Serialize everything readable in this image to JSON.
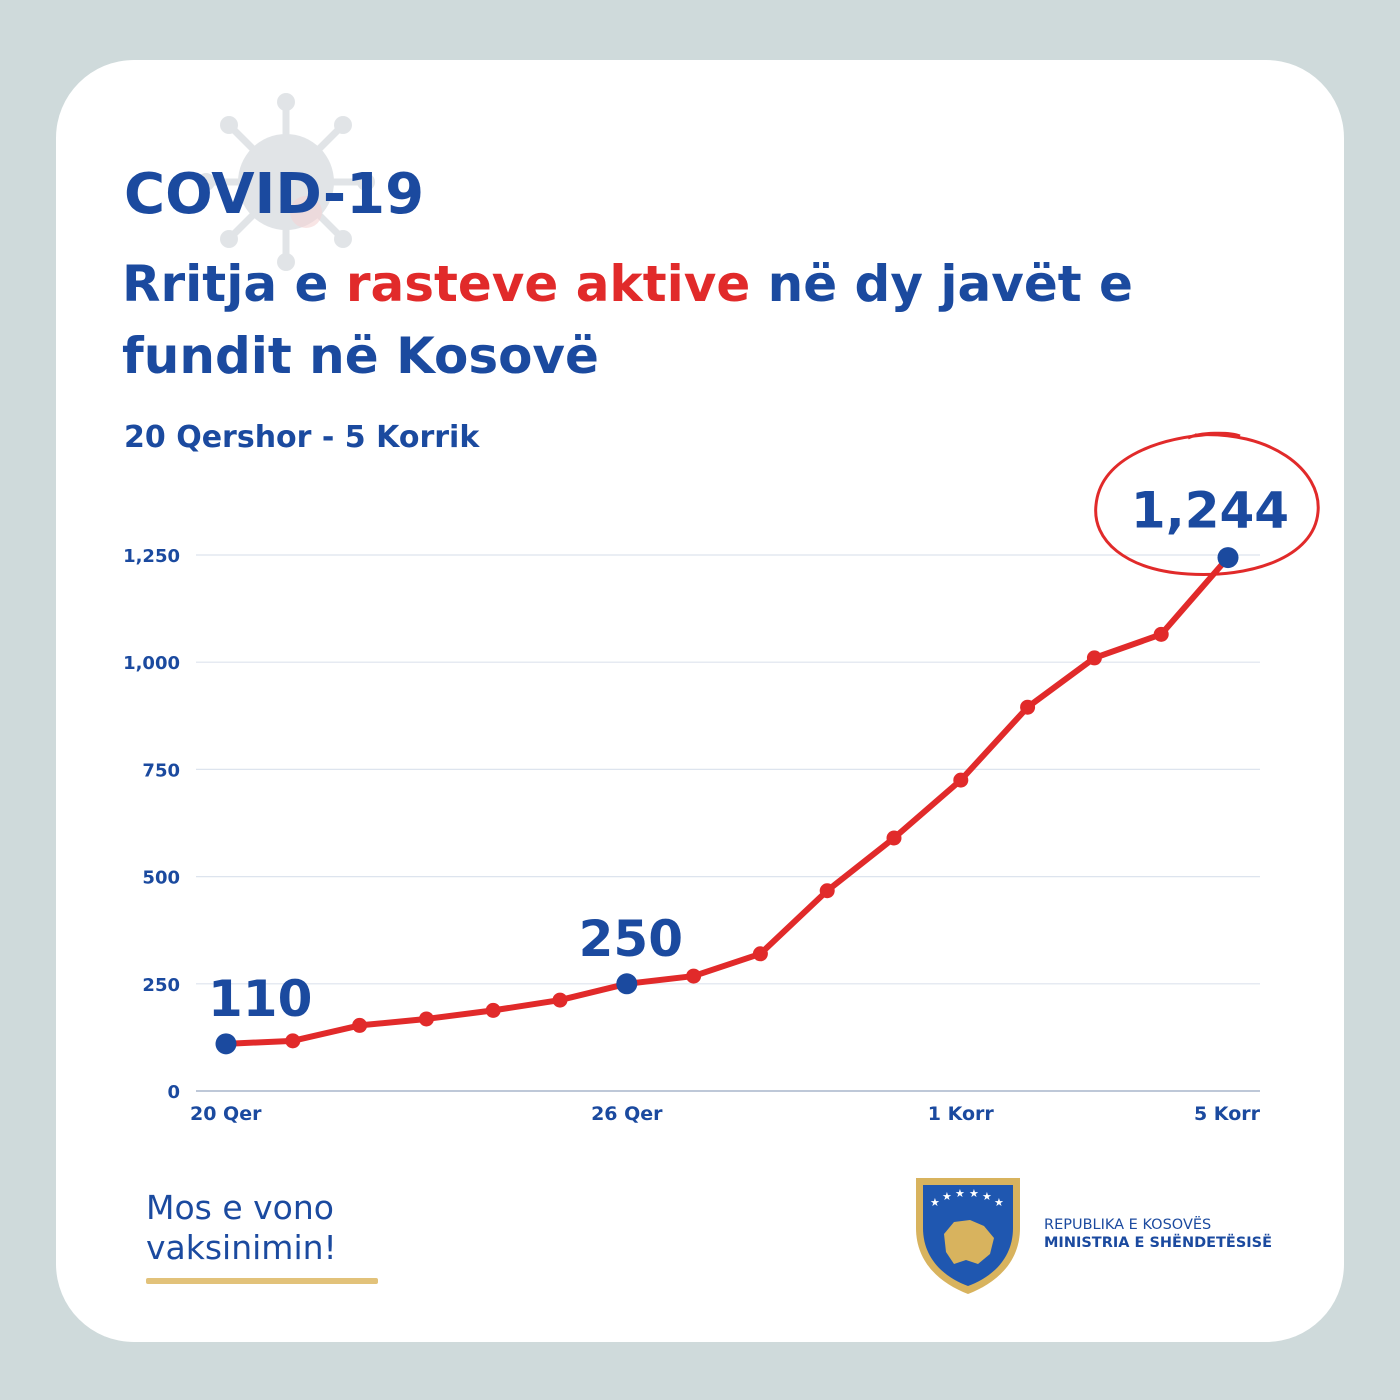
{
  "header": {
    "title": "COVID-19",
    "subtitle_part1": "Rritja e ",
    "subtitle_accent": "rasteve aktive",
    "subtitle_part2": " në dy javët e fundit në Kosovë",
    "date_range": "20 Qershor - 5 Korrik"
  },
  "footer": {
    "slogan": "Mos e vono vaksinimin!",
    "ministry_line1": "REPUBLIKA E KOSOVËS",
    "ministry_line2": "MINISTRIA E SHËNDETËSISË"
  },
  "colors": {
    "brand_blue": "#1b4a9f",
    "accent_red": "#e12a2a",
    "gold": "#e2c27a"
  },
  "icons": {
    "background": "virus-icon",
    "emblem": "kosovo-emblem-icon"
  },
  "chart_data": {
    "type": "line",
    "title": "",
    "xlabel": "",
    "ylabel": "",
    "ylim": [
      0,
      1250
    ],
    "yticks": [
      0,
      250,
      500,
      750,
      1000,
      1250
    ],
    "ytick_labels": [
      "0",
      "250",
      "500",
      "750",
      "1,000",
      "1,250"
    ],
    "grid": true,
    "x_tick_labels": [
      {
        "index": 0,
        "label": "20 Qer"
      },
      {
        "index": 6,
        "label": "26 Qer"
      },
      {
        "index": 11,
        "label": "1 Korr"
      },
      {
        "index": 15,
        "label": "5 Korr"
      }
    ],
    "series": [
      {
        "values": [
          110,
          117,
          153,
          168,
          188,
          212,
          250,
          268,
          320,
          467,
          590,
          725,
          895,
          1010,
          1065,
          1244
        ]
      }
    ],
    "highlights": [
      {
        "index": 0,
        "label": "110"
      },
      {
        "index": 6,
        "label": "250"
      },
      {
        "index": 15,
        "label": "1,244"
      }
    ]
  }
}
